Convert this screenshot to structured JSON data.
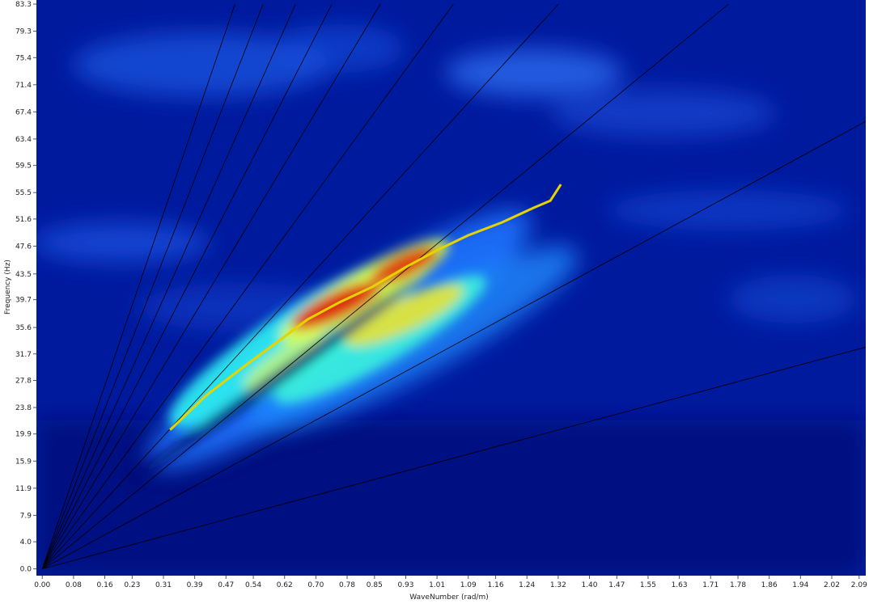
{
  "chart_data": {
    "type": "dispersion",
    "x_label": "WaveNumber (rad/m)",
    "y_label": "Frequency (Hz)",
    "xlim": [
      -0.015,
      2.107
    ],
    "ylim": [
      -1,
      83.9
    ],
    "xticks": [
      {
        "value": 0,
        "label": "0.00"
      },
      0.08,
      0.16,
      0.23,
      0.31,
      0.39,
      0.47,
      0.54,
      0.62,
      {
        "value": 0.7,
        "label": "0.70"
      },
      0.78,
      0.85,
      0.93,
      1.01,
      1.09,
      1.16,
      1.24,
      1.32,
      {
        "value": 1.4,
        "label": "1.40"
      },
      1.47,
      1.55,
      1.63,
      1.71,
      1.78,
      1.86,
      1.94,
      2.02,
      2.09
    ],
    "yticks": [
      {
        "value": 0,
        "label": "0.0"
      },
      {
        "value": 4,
        "label": "4.0"
      },
      7.9,
      11.9,
      15.9,
      19.9,
      23.8,
      27.8,
      31.7,
      35.6,
      39.7,
      43.5,
      47.6,
      51.6,
      55.5,
      59.5,
      63.4,
      67.4,
      71.4,
      75.4,
      79.3,
      83.3
    ],
    "series": [
      {
        "color": "#e6d400",
        "x": [
          0.327,
          0.42,
          0.513,
          0.6,
          0.679,
          0.76,
          0.845,
          0.93,
          1.01,
          1.09,
          1.176,
          1.259,
          1.3,
          1.327
        ],
        "values": [
          20.5,
          25.6,
          29.7,
          33.4,
          36.8,
          39.3,
          41.6,
          44.5,
          47.0,
          49.2,
          51.1,
          53.3,
          54.3,
          56.7
        ]
      }
    ],
    "reference_lines": [
      {
        "color": "#000000",
        "x": [
          0,
          0.493
        ],
        "values": [
          0,
          83.3
        ]
      },
      {
        "color": "#000000",
        "x": [
          0,
          0.565
        ],
        "values": [
          0,
          83.3
        ]
      },
      {
        "color": "#000000",
        "x": [
          0,
          0.648
        ],
        "values": [
          0,
          83.3
        ]
      },
      {
        "color": "#000000",
        "x": [
          0,
          0.741
        ],
        "values": [
          0,
          83.3
        ]
      },
      {
        "color": "#000000",
        "x": [
          0,
          0.865
        ],
        "values": [
          0,
          83.3
        ]
      },
      {
        "color": "#000000",
        "x": [
          0,
          1.052
        ],
        "values": [
          0,
          83.3
        ]
      },
      {
        "color": "#000000",
        "x": [
          0,
          1.321
        ],
        "values": [
          0,
          83.3
        ]
      },
      {
        "color": "#000000",
        "x": [
          0,
          1.756
        ],
        "values": [
          0,
          83.3
        ]
      },
      {
        "color": "#000000",
        "x": [
          0,
          2.107
        ],
        "values": [
          0,
          66.0
        ]
      },
      {
        "color": "#000000",
        "x": [
          0,
          2.107
        ],
        "values": [
          0,
          32.7
        ]
      }
    ]
  }
}
